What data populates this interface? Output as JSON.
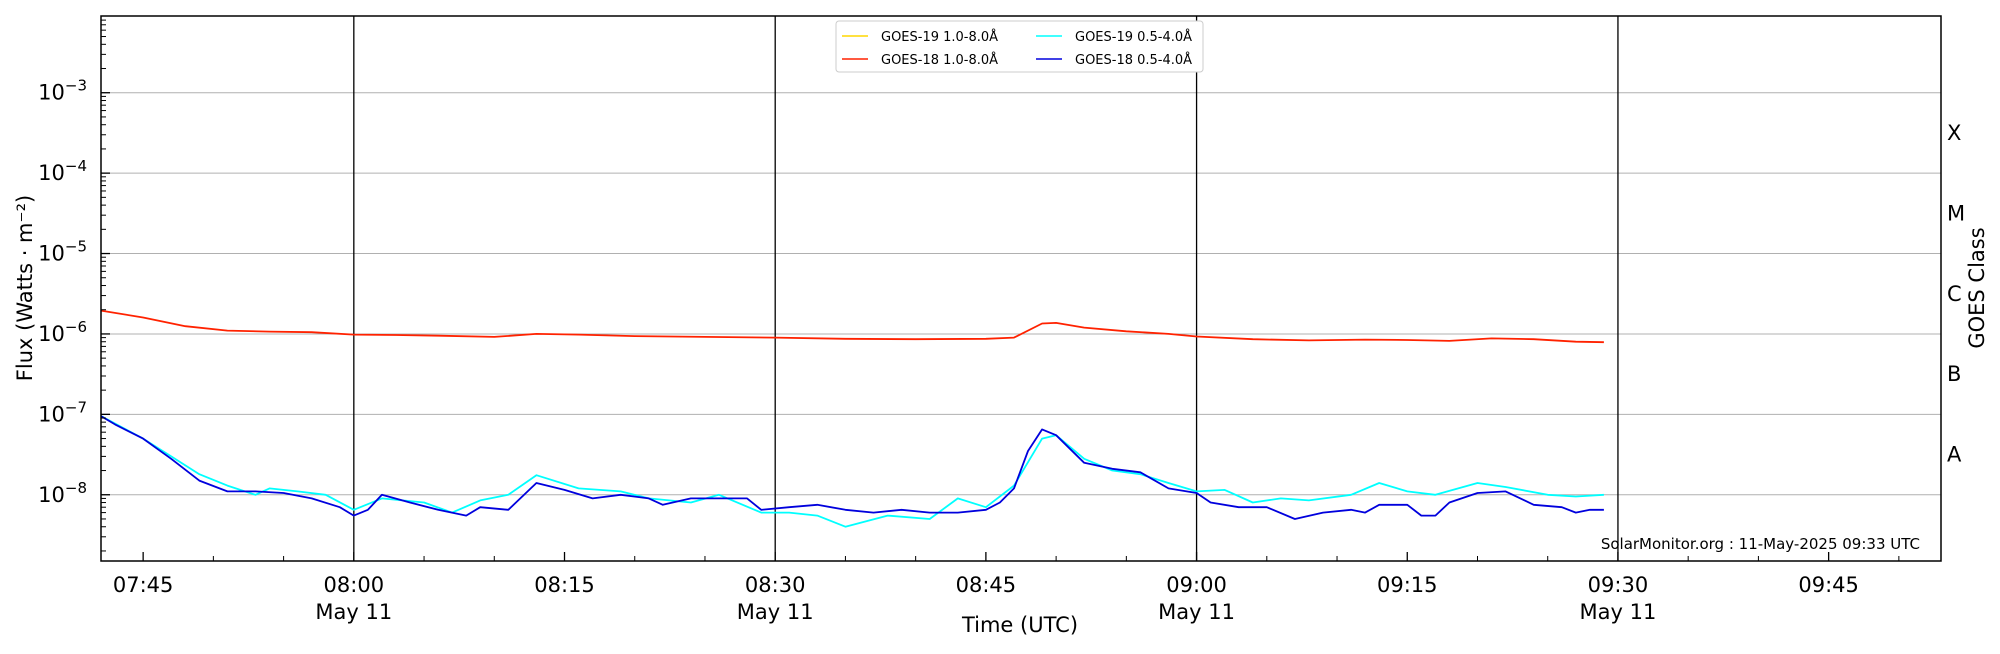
{
  "chart_data": {
    "type": "line",
    "title": "",
    "xlabel": "Time (UTC)",
    "ylabel": "Flux (Watts · m⁻²)",
    "right_label": "GOES Class",
    "y_scale": "log",
    "ylim": [
      1.5e-09,
      0.009
    ],
    "xlim": [
      "07:42",
      "09:53"
    ],
    "y_ticks": [
      {
        "value": 1e-08,
        "mantissa": "10",
        "exp": "−8"
      },
      {
        "value": 1e-07,
        "mantissa": "10",
        "exp": "−7"
      },
      {
        "value": 1e-06,
        "mantissa": "10",
        "exp": "−6"
      },
      {
        "value": 1e-05,
        "mantissa": "10",
        "exp": "−5"
      },
      {
        "value": 0.0001,
        "mantissa": "10",
        "exp": "−4"
      },
      {
        "value": 0.001,
        "mantissa": "10",
        "exp": "−3"
      }
    ],
    "x_ticks": [
      {
        "time": "07:45",
        "label": "07:45",
        "sublabel": ""
      },
      {
        "time": "08:00",
        "label": "08:00",
        "sublabel": "May 11"
      },
      {
        "time": "08:15",
        "label": "08:15",
        "sublabel": ""
      },
      {
        "time": "08:30",
        "label": "08:30",
        "sublabel": "May 11"
      },
      {
        "time": "08:45",
        "label": "08:45",
        "sublabel": ""
      },
      {
        "time": "09:00",
        "label": "09:00",
        "sublabel": "May 11"
      },
      {
        "time": "09:15",
        "label": "09:15",
        "sublabel": ""
      },
      {
        "time": "09:30",
        "label": "09:30",
        "sublabel": "May 11"
      },
      {
        "time": "09:45",
        "label": "09:45",
        "sublabel": ""
      }
    ],
    "vertical_lines": [
      "08:00",
      "08:30",
      "09:00",
      "09:30"
    ],
    "goes_classes": [
      {
        "label": "A",
        "flux": 3.16e-08
      },
      {
        "label": "B",
        "flux": 3.16e-07
      },
      {
        "label": "C",
        "flux": 3.16e-06
      },
      {
        "label": "M",
        "flux": 3.16e-05
      },
      {
        "label": "X",
        "flux": 0.000316
      }
    ],
    "grid": true,
    "legend": {
      "placement": "top-center",
      "entries": [
        {
          "label": "GOES-19 1.0-8.0Å",
          "color": "#ffd700"
        },
        {
          "label": "GOES-18 1.0-8.0Å",
          "color": "#ff2200"
        },
        {
          "label": "GOES-19 0.5-4.0Å",
          "color": "#00ffff"
        },
        {
          "label": "GOES-18 0.5-4.0Å",
          "color": "#0000dd"
        }
      ]
    },
    "annotation": "SolarMonitor.org : 11-May-2025 09:33 UTC",
    "series": [
      {
        "name": "GOES-19 1.0-8.0Å",
        "color": "#ffd700",
        "points": []
      },
      {
        "name": "GOES-18 1.0-8.0Å",
        "color": "#ff2200",
        "points": [
          [
            "07:42",
            1.95e-06
          ],
          [
            "07:45",
            1.6e-06
          ],
          [
            "07:48",
            1.25e-06
          ],
          [
            "07:51",
            1.1e-06
          ],
          [
            "07:54",
            1.07e-06
          ],
          [
            "07:57",
            1.05e-06
          ],
          [
            "08:00",
            9.8e-07
          ],
          [
            "08:03",
            9.7e-07
          ],
          [
            "08:06",
            9.5e-07
          ],
          [
            "08:10",
            9.2e-07
          ],
          [
            "08:13",
            1e-06
          ],
          [
            "08:16",
            9.8e-07
          ],
          [
            "08:20",
            9.4e-07
          ],
          [
            "08:25",
            9.2e-07
          ],
          [
            "08:30",
            9e-07
          ],
          [
            "08:35",
            8.7e-07
          ],
          [
            "08:40",
            8.6e-07
          ],
          [
            "08:45",
            8.7e-07
          ],
          [
            "08:47",
            9e-07
          ],
          [
            "08:49",
            1.35e-06
          ],
          [
            "08:50",
            1.37e-06
          ],
          [
            "08:52",
            1.2e-06
          ],
          [
            "08:55",
            1.08e-06
          ],
          [
            "08:58",
            1e-06
          ],
          [
            "09:00",
            9.3e-07
          ],
          [
            "09:04",
            8.6e-07
          ],
          [
            "09:08",
            8.3e-07
          ],
          [
            "09:12",
            8.5e-07
          ],
          [
            "09:15",
            8.4e-07
          ],
          [
            "09:18",
            8.2e-07
          ],
          [
            "09:21",
            8.8e-07
          ],
          [
            "09:24",
            8.6e-07
          ],
          [
            "09:27",
            8e-07
          ],
          [
            "09:29",
            7.9e-07
          ]
        ]
      },
      {
        "name": "GOES-19 0.5-4.0Å",
        "color": "#00ffff",
        "points": [
          [
            "07:42",
            9.5e-08
          ],
          [
            "07:45",
            5e-08
          ],
          [
            "07:47",
            3e-08
          ],
          [
            "07:49",
            1.8e-08
          ],
          [
            "07:51",
            1.3e-08
          ],
          [
            "07:53",
            1e-08
          ],
          [
            "07:54",
            1.2e-08
          ],
          [
            "07:56",
            1.1e-08
          ],
          [
            "07:58",
            1e-08
          ],
          [
            "08:00",
            6.5e-09
          ],
          [
            "08:02",
            9e-09
          ],
          [
            "08:05",
            8e-09
          ],
          [
            "08:07",
            6e-09
          ],
          [
            "08:09",
            8.5e-09
          ],
          [
            "08:11",
            1e-08
          ],
          [
            "08:13",
            1.75e-08
          ],
          [
            "08:16",
            1.2e-08
          ],
          [
            "08:19",
            1.1e-08
          ],
          [
            "08:21",
            9e-09
          ],
          [
            "08:24",
            8e-09
          ],
          [
            "08:26",
            1e-08
          ],
          [
            "08:29",
            6e-09
          ],
          [
            "08:31",
            6e-09
          ],
          [
            "08:33",
            5.5e-09
          ],
          [
            "08:35",
            4e-09
          ],
          [
            "08:38",
            5.5e-09
          ],
          [
            "08:41",
            5e-09
          ],
          [
            "08:43",
            9e-09
          ],
          [
            "08:45",
            7e-09
          ],
          [
            "08:47",
            1.3e-08
          ],
          [
            "08:49",
            5e-08
          ],
          [
            "08:50",
            5.5e-08
          ],
          [
            "08:52",
            2.8e-08
          ],
          [
            "08:54",
            2e-08
          ],
          [
            "08:56",
            1.8e-08
          ],
          [
            "08:58",
            1.4e-08
          ],
          [
            "09:00",
            1.1e-08
          ],
          [
            "09:02",
            1.15e-08
          ],
          [
            "09:04",
            8e-09
          ],
          [
            "09:06",
            9e-09
          ],
          [
            "09:08",
            8.5e-09
          ],
          [
            "09:11",
            1e-08
          ],
          [
            "09:13",
            1.4e-08
          ],
          [
            "09:15",
            1.1e-08
          ],
          [
            "09:17",
            1e-08
          ],
          [
            "09:20",
            1.4e-08
          ],
          [
            "09:22",
            1.25e-08
          ],
          [
            "09:25",
            1e-08
          ],
          [
            "09:27",
            9.5e-09
          ],
          [
            "09:29",
            1e-08
          ]
        ]
      },
      {
        "name": "GOES-18 0.5-4.0Å",
        "color": "#0000dd",
        "points": [
          [
            "07:42",
            9.5e-08
          ],
          [
            "07:43",
            7.5e-08
          ],
          [
            "07:45",
            5e-08
          ],
          [
            "07:47",
            2.8e-08
          ],
          [
            "07:49",
            1.5e-08
          ],
          [
            "07:51",
            1.1e-08
          ],
          [
            "07:53",
            1.1e-08
          ],
          [
            "07:55",
            1.05e-08
          ],
          [
            "07:57",
            9e-09
          ],
          [
            "07:59",
            7e-09
          ],
          [
            "08:00",
            5.5e-09
          ],
          [
            "08:01",
            6.5e-09
          ],
          [
            "08:02",
            1e-08
          ],
          [
            "08:04",
            8e-09
          ],
          [
            "08:06",
            6.5e-09
          ],
          [
            "08:08",
            5.5e-09
          ],
          [
            "08:09",
            7e-09
          ],
          [
            "08:11",
            6.5e-09
          ],
          [
            "08:13",
            1.4e-08
          ],
          [
            "08:15",
            1.15e-08
          ],
          [
            "08:17",
            9e-09
          ],
          [
            "08:19",
            1e-08
          ],
          [
            "08:21",
            9e-09
          ],
          [
            "08:22",
            7.5e-09
          ],
          [
            "08:24",
            9e-09
          ],
          [
            "08:26",
            9e-09
          ],
          [
            "08:28",
            9e-09
          ],
          [
            "08:29",
            6.5e-09
          ],
          [
            "08:31",
            7e-09
          ],
          [
            "08:33",
            7.5e-09
          ],
          [
            "08:35",
            6.5e-09
          ],
          [
            "08:37",
            6e-09
          ],
          [
            "08:39",
            6.5e-09
          ],
          [
            "08:41",
            6e-09
          ],
          [
            "08:43",
            6e-09
          ],
          [
            "08:45",
            6.5e-09
          ],
          [
            "08:46",
            8e-09
          ],
          [
            "08:47",
            1.2e-08
          ],
          [
            "08:48",
            3.5e-08
          ],
          [
            "08:49",
            6.5e-08
          ],
          [
            "08:50",
            5.5e-08
          ],
          [
            "08:52",
            2.5e-08
          ],
          [
            "08:54",
            2.1e-08
          ],
          [
            "08:56",
            1.9e-08
          ],
          [
            "08:58",
            1.2e-08
          ],
          [
            "09:00",
            1.05e-08
          ],
          [
            "09:01",
            8e-09
          ],
          [
            "09:03",
            7e-09
          ],
          [
            "09:05",
            7e-09
          ],
          [
            "09:07",
            5e-09
          ],
          [
            "09:09",
            6e-09
          ],
          [
            "09:11",
            6.5e-09
          ],
          [
            "09:12",
            6e-09
          ],
          [
            "09:13",
            7.5e-09
          ],
          [
            "09:15",
            7.5e-09
          ],
          [
            "09:16",
            5.5e-09
          ],
          [
            "09:17",
            5.5e-09
          ],
          [
            "09:18",
            8e-09
          ],
          [
            "09:20",
            1.05e-08
          ],
          [
            "09:22",
            1.1e-08
          ],
          [
            "09:24",
            7.5e-09
          ],
          [
            "09:26",
            7e-09
          ],
          [
            "09:27",
            6e-09
          ],
          [
            "09:28",
            6.5e-09
          ],
          [
            "09:29",
            6.5e-09
          ]
        ]
      }
    ]
  }
}
